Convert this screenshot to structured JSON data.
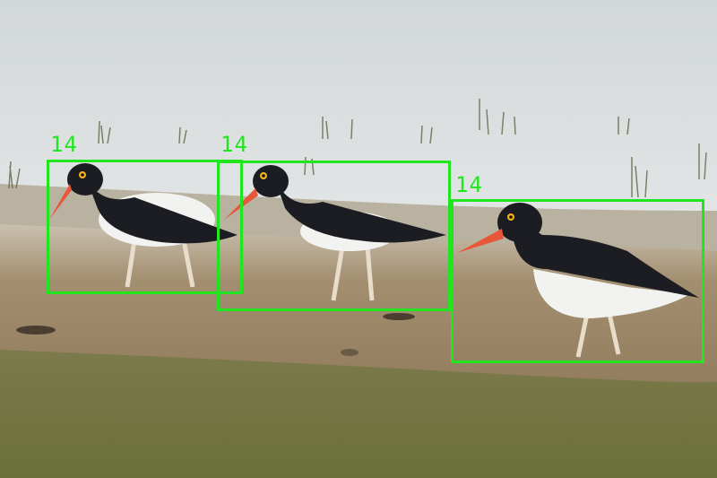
{
  "image": {
    "subject": "oystercatcher",
    "bird_count": 3
  },
  "detections": [
    {
      "label": "14",
      "color": "#1fe61f"
    },
    {
      "label": "14",
      "color": "#1fe61f"
    },
    {
      "label": "14",
      "color": "#1fe61f"
    }
  ],
  "colors": {
    "box": "#1fe61f",
    "water": "#d7dcdc",
    "mud": "#9c8868",
    "grass": "#6f7440",
    "bird_dark": "#1c1d22",
    "bird_white": "#f2f2f0",
    "beak": "#e8573a"
  }
}
